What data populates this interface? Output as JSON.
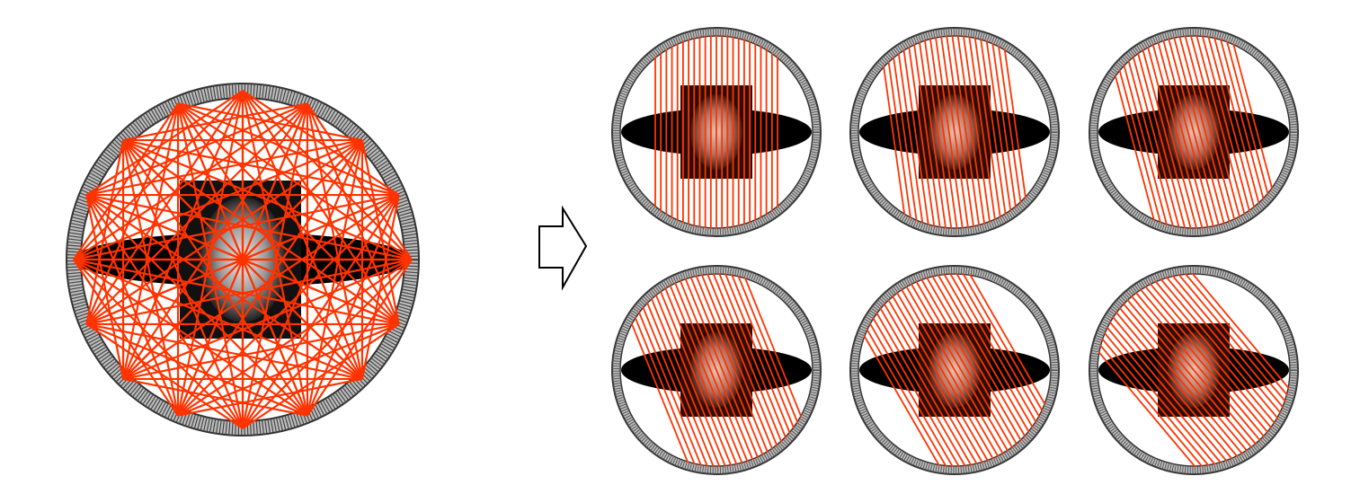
{
  "colors": {
    "ray": "#ff3300",
    "ring_fill": "#aaaaaa",
    "ring_stroke": "#333333",
    "body": "#000000",
    "background": "#ffffff",
    "arrow": "#000000"
  },
  "left_panel": {
    "name": "fan-beam-geometry",
    "sources": 16
  },
  "arrow": {
    "name": "transform-arrow-icon"
  },
  "projections": [
    {
      "name": "parallel-projection-1",
      "angle_deg": 0
    },
    {
      "name": "parallel-projection-2",
      "angle_deg": 8
    },
    {
      "name": "parallel-projection-3",
      "angle_deg": 15
    },
    {
      "name": "parallel-projection-4",
      "angle_deg": 22
    },
    {
      "name": "parallel-projection-5",
      "angle_deg": 30
    },
    {
      "name": "parallel-projection-6",
      "angle_deg": 40
    }
  ]
}
